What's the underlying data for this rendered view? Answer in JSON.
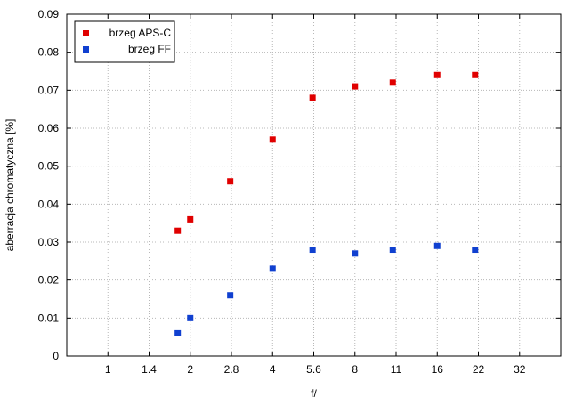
{
  "chart_data": {
    "type": "scatter",
    "title": "",
    "xlabel": "f/",
    "ylabel": "aberracja chromatyczna [%]",
    "x_scale": "log2 (f-stop sequence)",
    "x_ticks": [
      "1",
      "1.4",
      "2",
      "2.8",
      "4",
      "5.6",
      "8",
      "11",
      "16",
      "22",
      "32"
    ],
    "xlim": [
      0.7071,
      45.25
    ],
    "y_ticks": [
      "0",
      "0.01",
      "0.02",
      "0.03",
      "0.04",
      "0.05",
      "0.06",
      "0.07",
      "0.08",
      "0.09"
    ],
    "ylim": [
      0,
      0.09
    ],
    "grid": true,
    "legend_position": "top-left",
    "series": [
      {
        "name": "brzeg APS-C",
        "color": "#e00000",
        "points": [
          {
            "x": 1.8,
            "y": 0.033
          },
          {
            "x": 2.0,
            "y": 0.036
          },
          {
            "x": 2.8,
            "y": 0.046
          },
          {
            "x": 4.0,
            "y": 0.057
          },
          {
            "x": 5.6,
            "y": 0.068
          },
          {
            "x": 8.0,
            "y": 0.071
          },
          {
            "x": 11.0,
            "y": 0.072
          },
          {
            "x": 16.0,
            "y": 0.074
          },
          {
            "x": 22.0,
            "y": 0.074
          }
        ]
      },
      {
        "name": "brzeg FF",
        "color": "#1040d0",
        "points": [
          {
            "x": 1.8,
            "y": 0.006
          },
          {
            "x": 2.0,
            "y": 0.01
          },
          {
            "x": 2.8,
            "y": 0.016
          },
          {
            "x": 4.0,
            "y": 0.023
          },
          {
            "x": 5.6,
            "y": 0.028
          },
          {
            "x": 8.0,
            "y": 0.027
          },
          {
            "x": 11.0,
            "y": 0.028
          },
          {
            "x": 16.0,
            "y": 0.029
          },
          {
            "x": 22.0,
            "y": 0.028
          }
        ]
      }
    ]
  }
}
